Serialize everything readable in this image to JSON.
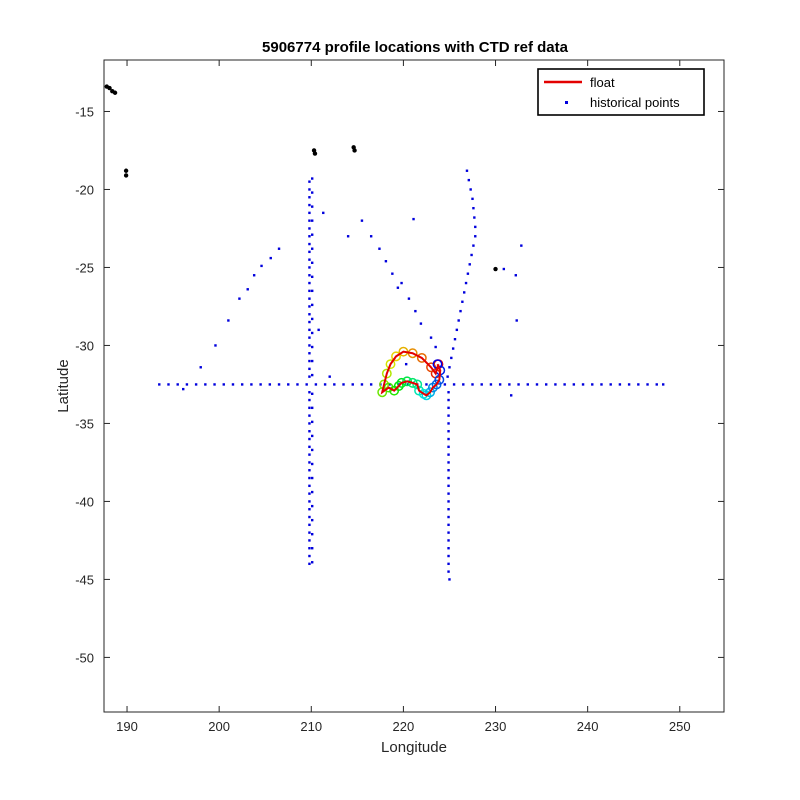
{
  "colors": {
    "float": "#e30000",
    "historical": "#0000dd",
    "coast": "#000000",
    "axis": "#262626"
  },
  "chart_data": {
    "type": "scatter",
    "title": "5906774 profile locations with CTD ref data",
    "xlabel": "Longitude",
    "ylabel": "Latitude",
    "xlim": [
      187.5,
      254.8
    ],
    "ylim": [
      -53.5,
      -11.7
    ],
    "xticks": [
      190,
      200,
      210,
      220,
      230,
      240,
      250
    ],
    "yticks": [
      -15,
      -20,
      -25,
      -30,
      -35,
      -40,
      -45,
      -50
    ],
    "grid": false,
    "legend": {
      "position": "top-right",
      "entries": [
        "float",
        "historical points"
      ]
    },
    "series": [
      {
        "name": "float",
        "marker": "line+circles colored by profile time (rainbow)",
        "values": [
          [
            223.8,
            -31.2
          ],
          [
            223.5,
            -31.8
          ],
          [
            223.0,
            -31.4
          ],
          [
            222.0,
            -30.8
          ],
          [
            221.0,
            -30.5
          ],
          [
            220.0,
            -30.4
          ],
          [
            219.2,
            -30.7
          ],
          [
            218.6,
            -31.2
          ],
          [
            218.2,
            -31.8
          ],
          [
            217.9,
            -32.5
          ],
          [
            217.7,
            -33.0
          ],
          [
            218.4,
            -32.7
          ],
          [
            219.0,
            -32.9
          ],
          [
            219.5,
            -32.6
          ],
          [
            219.8,
            -32.4
          ],
          [
            220.4,
            -32.3
          ],
          [
            221.0,
            -32.4
          ],
          [
            221.5,
            -32.5
          ],
          [
            221.7,
            -32.9
          ],
          [
            222.2,
            -33.1
          ],
          [
            222.5,
            -33.2
          ],
          [
            222.9,
            -33.0
          ],
          [
            223.2,
            -32.7
          ],
          [
            223.6,
            -32.5
          ],
          [
            223.9,
            -32.2
          ],
          [
            224.0,
            -31.6
          ],
          [
            223.7,
            -31.2
          ]
        ]
      },
      {
        "name": "historical points",
        "marker": "dots",
        "values": [
          [
            193.5,
            -32.5
          ],
          [
            194.5,
            -32.5
          ],
          [
            195.5,
            -32.5
          ],
          [
            196.5,
            -32.5
          ],
          [
            197.5,
            -32.5
          ],
          [
            198.5,
            -32.5
          ],
          [
            199.5,
            -32.5
          ],
          [
            200.5,
            -32.5
          ],
          [
            201.5,
            -32.5
          ],
          [
            202.5,
            -32.5
          ],
          [
            203.5,
            -32.5
          ],
          [
            204.5,
            -32.5
          ],
          [
            205.5,
            -32.5
          ],
          [
            206.5,
            -32.5
          ],
          [
            207.5,
            -32.5
          ],
          [
            208.5,
            -32.5
          ],
          [
            209.5,
            -32.5
          ],
          [
            210.5,
            -32.5
          ],
          [
            211.5,
            -32.5
          ],
          [
            212.5,
            -32.5
          ],
          [
            213.5,
            -32.5
          ],
          [
            214.5,
            -32.5
          ],
          [
            215.5,
            -32.5
          ],
          [
            216.5,
            -32.5
          ],
          [
            217.5,
            -32.5
          ],
          [
            218.5,
            -32.5
          ],
          [
            219.5,
            -32.5
          ],
          [
            220.5,
            -32.5
          ],
          [
            221.5,
            -32.5
          ],
          [
            222.5,
            -32.5
          ],
          [
            223.5,
            -32.5
          ],
          [
            224.5,
            -32.5
          ],
          [
            225.5,
            -32.5
          ],
          [
            226.5,
            -32.5
          ],
          [
            227.5,
            -32.5
          ],
          [
            228.5,
            -32.5
          ],
          [
            229.5,
            -32.5
          ],
          [
            230.5,
            -32.5
          ],
          [
            231.5,
            -32.5
          ],
          [
            232.5,
            -32.5
          ],
          [
            233.5,
            -32.5
          ],
          [
            234.5,
            -32.5
          ],
          [
            235.5,
            -32.5
          ],
          [
            236.5,
            -32.5
          ],
          [
            237.5,
            -32.5
          ],
          [
            238.5,
            -32.5
          ],
          [
            239.5,
            -32.5
          ],
          [
            240.5,
            -32.5
          ],
          [
            241.5,
            -32.5
          ],
          [
            242.5,
            -32.5
          ],
          [
            243.5,
            -32.5
          ],
          [
            244.5,
            -32.5
          ],
          [
            245.5,
            -32.5
          ],
          [
            246.5,
            -32.5
          ],
          [
            247.5,
            -32.5
          ],
          [
            248.2,
            -32.5
          ],
          [
            209.8,
            -19.5
          ],
          [
            209.8,
            -20.0
          ],
          [
            209.8,
            -20.5
          ],
          [
            209.8,
            -21.0
          ],
          [
            209.8,
            -21.5
          ],
          [
            209.8,
            -22.0
          ],
          [
            209.8,
            -22.5
          ],
          [
            209.8,
            -23.0
          ],
          [
            209.8,
            -23.5
          ],
          [
            209.8,
            -24.0
          ],
          [
            209.8,
            -24.5
          ],
          [
            209.8,
            -25.0
          ],
          [
            209.8,
            -25.5
          ],
          [
            209.8,
            -26.0
          ],
          [
            209.8,
            -26.5
          ],
          [
            209.8,
            -27.0
          ],
          [
            209.8,
            -27.5
          ],
          [
            209.8,
            -28.0
          ],
          [
            209.8,
            -28.5
          ],
          [
            209.8,
            -29.0
          ],
          [
            209.8,
            -29.5
          ],
          [
            209.8,
            -30.0
          ],
          [
            209.8,
            -30.5
          ],
          [
            209.8,
            -31.0
          ],
          [
            209.8,
            -31.5
          ],
          [
            209.8,
            -32.0
          ],
          [
            209.8,
            -33.0
          ],
          [
            209.8,
            -33.5
          ],
          [
            209.8,
            -34.0
          ],
          [
            209.8,
            -34.5
          ],
          [
            209.8,
            -35.0
          ],
          [
            209.8,
            -35.5
          ],
          [
            209.8,
            -36.0
          ],
          [
            209.8,
            -36.5
          ],
          [
            209.8,
            -37.0
          ],
          [
            209.8,
            -37.5
          ],
          [
            209.8,
            -38.0
          ],
          [
            209.8,
            -38.5
          ],
          [
            209.8,
            -39.0
          ],
          [
            209.8,
            -39.5
          ],
          [
            209.8,
            -40.0
          ],
          [
            209.8,
            -40.5
          ],
          [
            209.8,
            -41.0
          ],
          [
            209.8,
            -41.5
          ],
          [
            209.8,
            -42.0
          ],
          [
            209.8,
            -42.5
          ],
          [
            209.8,
            -43.0
          ],
          [
            209.8,
            -43.5
          ],
          [
            209.8,
            -44.0
          ],
          [
            210.1,
            -19.3
          ],
          [
            210.1,
            -20.2
          ],
          [
            210.1,
            -21.1
          ],
          [
            210.1,
            -22.0
          ],
          [
            210.1,
            -22.9
          ],
          [
            210.1,
            -23.8
          ],
          [
            210.1,
            -24.7
          ],
          [
            210.1,
            -25.6
          ],
          [
            210.1,
            -26.5
          ],
          [
            210.1,
            -27.4
          ],
          [
            210.1,
            -28.3
          ],
          [
            210.1,
            -29.2
          ],
          [
            210.1,
            -30.1
          ],
          [
            210.1,
            -31.0
          ],
          [
            210.1,
            -31.9
          ],
          [
            210.1,
            -33.1
          ],
          [
            210.1,
            -34.0
          ],
          [
            210.1,
            -34.9
          ],
          [
            210.1,
            -35.8
          ],
          [
            210.1,
            -36.7
          ],
          [
            210.1,
            -37.6
          ],
          [
            210.1,
            -38.5
          ],
          [
            210.1,
            -39.4
          ],
          [
            210.1,
            -40.3
          ],
          [
            210.1,
            -41.2
          ],
          [
            210.1,
            -42.1
          ],
          [
            210.1,
            -43.0
          ],
          [
            210.1,
            -43.9
          ],
          [
            224.9,
            -33.0
          ],
          [
            224.9,
            -33.5
          ],
          [
            224.9,
            -34.0
          ],
          [
            224.9,
            -34.5
          ],
          [
            224.9,
            -35.0
          ],
          [
            224.9,
            -35.5
          ],
          [
            224.9,
            -36.0
          ],
          [
            224.9,
            -36.5
          ],
          [
            224.9,
            -37.0
          ],
          [
            224.9,
            -37.5
          ],
          [
            224.9,
            -38.0
          ],
          [
            224.9,
            -38.5
          ],
          [
            224.9,
            -39.0
          ],
          [
            224.9,
            -39.5
          ],
          [
            224.9,
            -40.0
          ],
          [
            224.9,
            -40.5
          ],
          [
            224.9,
            -41.0
          ],
          [
            224.9,
            -41.5
          ],
          [
            224.9,
            -42.0
          ],
          [
            224.9,
            -42.5
          ],
          [
            224.9,
            -43.0
          ],
          [
            224.9,
            -43.5
          ],
          [
            224.9,
            -44.0
          ],
          [
            224.9,
            -44.5
          ],
          [
            225.0,
            -45.0
          ],
          [
            226.9,
            -18.8
          ],
          [
            227.1,
            -19.4
          ],
          [
            227.3,
            -20.0
          ],
          [
            227.5,
            -20.6
          ],
          [
            227.6,
            -21.2
          ],
          [
            227.7,
            -21.8
          ],
          [
            227.8,
            -22.4
          ],
          [
            227.8,
            -23.0
          ],
          [
            227.6,
            -23.6
          ],
          [
            227.4,
            -24.2
          ],
          [
            227.2,
            -24.8
          ],
          [
            227.0,
            -25.4
          ],
          [
            226.8,
            -26.0
          ],
          [
            226.6,
            -26.6
          ],
          [
            226.4,
            -27.2
          ],
          [
            226.2,
            -27.8
          ],
          [
            226.0,
            -28.4
          ],
          [
            225.8,
            -29.0
          ],
          [
            225.6,
            -29.6
          ],
          [
            225.4,
            -30.2
          ],
          [
            225.2,
            -30.8
          ],
          [
            225.0,
            -31.4
          ],
          [
            224.8,
            -32.0
          ],
          [
            198.0,
            -31.4
          ],
          [
            199.6,
            -30.0
          ],
          [
            201.0,
            -28.4
          ],
          [
            202.2,
            -27.0
          ],
          [
            203.1,
            -26.4
          ],
          [
            203.8,
            -25.5
          ],
          [
            204.6,
            -24.9
          ],
          [
            205.6,
            -24.4
          ],
          [
            206.5,
            -23.8
          ],
          [
            196.1,
            -32.8
          ],
          [
            211.3,
            -21.5
          ],
          [
            210.8,
            -29.0
          ],
          [
            212.0,
            -32.0
          ],
          [
            214.0,
            -23.0
          ],
          [
            215.5,
            -22.0
          ],
          [
            216.5,
            -23.0
          ],
          [
            217.4,
            -23.8
          ],
          [
            218.1,
            -24.6
          ],
          [
            218.8,
            -25.4
          ],
          [
            219.4,
            -26.3
          ],
          [
            219.8,
            -26.0
          ],
          [
            220.6,
            -27.0
          ],
          [
            221.3,
            -27.8
          ],
          [
            221.9,
            -28.6
          ],
          [
            221.1,
            -21.9
          ],
          [
            223.0,
            -29.5
          ],
          [
            223.5,
            -30.1
          ],
          [
            220.3,
            -31.2
          ],
          [
            230.9,
            -25.1
          ],
          [
            232.2,
            -25.5
          ],
          [
            232.8,
            -23.6
          ],
          [
            232.3,
            -28.4
          ],
          [
            231.7,
            -33.2
          ]
        ]
      }
    ],
    "coastline_points": [
      [
        187.8,
        -13.4
      ],
      [
        188.1,
        -13.5
      ],
      [
        188.4,
        -13.7
      ],
      [
        188.7,
        -13.8
      ],
      [
        189.9,
        -18.8
      ],
      [
        189.9,
        -19.1
      ],
      [
        210.3,
        -17.5
      ],
      [
        210.4,
        -17.7
      ],
      [
        214.6,
        -17.3
      ],
      [
        214.7,
        -17.5
      ],
      [
        230.0,
        -25.1
      ]
    ]
  }
}
